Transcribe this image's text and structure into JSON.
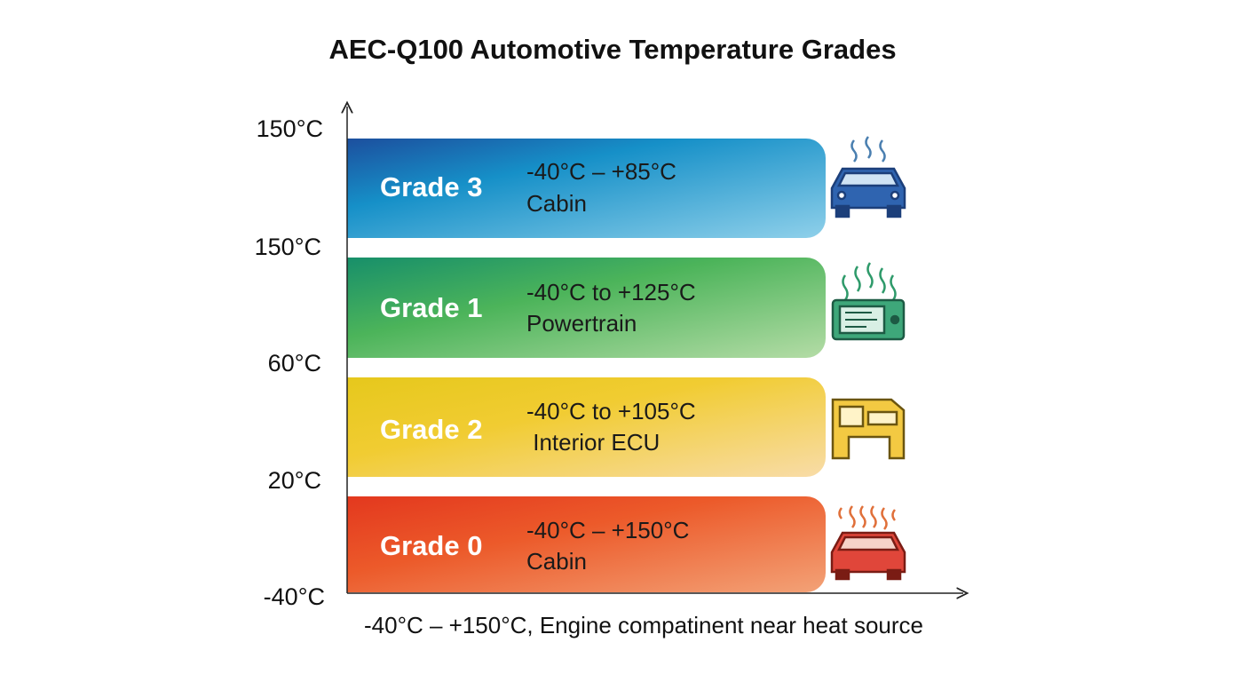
{
  "title": "AEC-Q100 Automotive Temperature Grades",
  "axis_labels": [
    "150°C",
    "150°C",
    "60°C",
    "20°C",
    "-40°C"
  ],
  "bands": [
    {
      "grade": "Grade 3",
      "range": "-40°C – +85°C",
      "use": "Cabin"
    },
    {
      "grade": "Grade 1",
      "range": "-40°C to +125°C",
      "use": "Powertrain"
    },
    {
      "grade": "Grade 2",
      "range": "-40°C to +105°C",
      "use": " Interior ECU"
    },
    {
      "grade": "Grade 0",
      "range": "-40°C – +150°C",
      "use": "Cabin"
    }
  ],
  "caption": "-40°C – +150°C, Engine compatinent near heat source"
}
